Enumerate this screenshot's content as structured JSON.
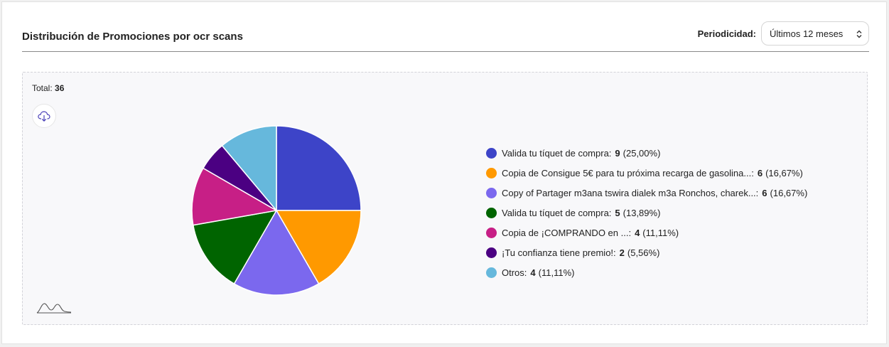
{
  "header": {
    "title": "Distribución de Promociones por ocr scans",
    "period_label": "Periodicidad:",
    "period_value": "Últimos 12 meses"
  },
  "panel": {
    "total_label": "Total:",
    "total_value": "36"
  },
  "icons": {
    "download": "cloud-download-icon",
    "sparkline": "chart-type-icon",
    "select_arrows": "up-down-arrows-icon"
  },
  "chart_data": {
    "type": "pie",
    "categories": [
      "Valida tu tíquet de compra:",
      "Copia de Consigue 5€ para tu próxima recarga de gasolina...:",
      "Copy of Partager m3ana tswira dialek m3a  Ronchos, charek...:",
      "Valida tu tíquet de compra:",
      "Copia de ¡COMPRANDO en ...:",
      "¡Tu confianza tiene premio!:",
      "Otros:"
    ],
    "values": [
      9,
      6,
      6,
      5,
      4,
      2,
      4
    ],
    "percent_labels": [
      "(25,00%)",
      "(16,67%)",
      "(16,67%)",
      "(13,89%)",
      "(11,11%)",
      "(5,56%)",
      "(11,11%)"
    ],
    "colors": [
      "#3d44c8",
      "#ff9900",
      "#7b68ee",
      "#006400",
      "#c71f86",
      "#4b0082",
      "#66b8dc"
    ],
    "legend_position": "right"
  }
}
